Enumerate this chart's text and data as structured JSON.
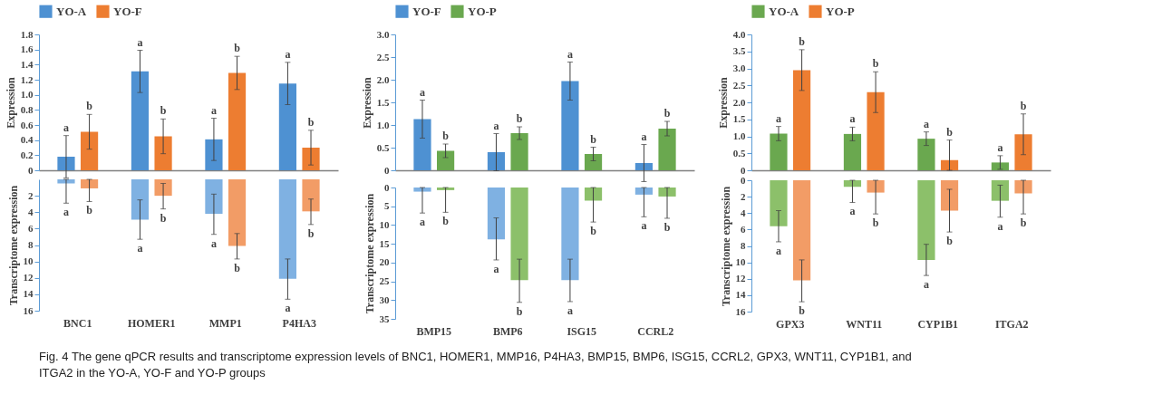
{
  "chart_data": [
    {
      "type": "bar",
      "categories": [
        null,
        null,
        null,
        null
      ],
      "ylabel": "Expression",
      "ylim": [
        0,
        1.8
      ],
      "yticks": [
        0,
        0.2,
        0.4,
        0.6,
        0.8,
        {
          "value": 1.0,
          "label": "1.0"
        },
        1.2,
        1.4,
        1.6,
        1.8
      ],
      "legend": "top",
      "tick_labels": "y",
      "grid": false,
      "series": [
        {
          "name": "YO-A",
          "color": "#4e91d2",
          "values": [
            0.18,
            1.31,
            0.41,
            1.15
          ],
          "errors": [
            0.28,
            0.28,
            0.28,
            0.28
          ],
          "value_labels": [
            "a",
            "a",
            "a",
            "a"
          ]
        },
        {
          "name": "YO-F",
          "color": "#ed7d31",
          "values": [
            0.51,
            0.45,
            1.29,
            0.3
          ],
          "errors": [
            0.23,
            0.23,
            0.22,
            0.23
          ],
          "value_labels": [
            "b",
            "b",
            "b",
            "b"
          ]
        }
      ],
      "annotations": [
        "Fig. 4  The gene qPCR results and transcriptome expression levels of BNC1, HOMER1, MMP16, P4HA3, BMP15, BMP6, ISG15, CCRL2, GPX3, WNT11, CYP1B1, and ITGA2 in the YO-A, YO-F and YO-P groups"
      ]
    },
    {
      "type": "bar",
      "categories": [
        "BNC1",
        "HOMER1",
        "MMP1",
        "P4HA3"
      ],
      "ylabel": "Transcriptome expression",
      "ylim": [
        16,
        0
      ],
      "yticks": [
        2,
        4,
        6,
        8,
        10,
        12,
        14,
        16
      ],
      "grid": false,
      "series": [
        {
          "color": "#7fb1e2",
          "values": [
            0.5,
            4.9,
            4.2,
            12.1
          ],
          "errors": [
            [
              0,
              2.9
            ],
            [
              2.5,
              7.3
            ],
            [
              1.8,
              6.7
            ],
            [
              9.7,
              14.6
            ]
          ],
          "value_labels": [
            "a",
            "a",
            "a",
            "a"
          ]
        },
        {
          "color": "#f29c66",
          "values": [
            1.1,
            2.0,
            8.1,
            3.9
          ],
          "errors": [
            [
              0,
              2.7
            ],
            [
              0.5,
              3.6
            ],
            [
              6.6,
              9.7
            ],
            [
              2.4,
              5.5
            ]
          ],
          "value_labels": [
            "b",
            "b",
            "b",
            "b"
          ]
        }
      ]
    },
    {
      "type": "bar",
      "categories": [
        null,
        null,
        null,
        null
      ],
      "ylabel": "Expression",
      "ylim": [
        0,
        3.0
      ],
      "yticks": [
        0,
        0.5,
        {
          "value": 1.0,
          "label": "1.0"
        },
        1.5,
        {
          "value": 2.0,
          "label": "2.0"
        },
        2.5,
        {
          "value": 3.0,
          "label": "3.0"
        }
      ],
      "legend": "top",
      "tick_labels": "y",
      "grid": false,
      "series": [
        {
          "name": "YO-F",
          "color": "#4e91d2",
          "values": [
            1.13,
            0.4,
            1.97,
            0.16
          ],
          "errors": [
            0.42,
            0.41,
            0.42,
            0.41
          ],
          "value_labels": [
            "a",
            "a",
            "a",
            "a"
          ]
        },
        {
          "name": "YO-P",
          "color": "#6aa84f",
          "values": [
            0.43,
            0.82,
            0.36,
            0.92
          ],
          "errors": [
            0.15,
            0.14,
            0.15,
            0.16
          ],
          "value_labels": [
            "b",
            "b",
            "b",
            "b"
          ]
        }
      ]
    },
    {
      "type": "bar",
      "categories": [
        "BMP15",
        "BMP6",
        "ISG15",
        "CCRL2"
      ],
      "ylabel": "Transcriptome expression",
      "ylim": [
        35,
        0
      ],
      "yticks": [
        0,
        5,
        10,
        15,
        20,
        25,
        30,
        35
      ],
      "grid": false,
      "series": [
        {
          "color": "#7fb1e2",
          "values": [
            1.1,
            13.8,
            24.7,
            1.9
          ],
          "errors": [
            [
              0,
              6.8
            ],
            [
              8.1,
              19.3
            ],
            [
              19.1,
              30.4
            ],
            [
              0,
              7.8
            ]
          ],
          "value_labels": [
            "a",
            "a",
            "a",
            "a"
          ]
        },
        {
          "color": "#8cc06a",
          "values": [
            0.7,
            24.7,
            3.5,
            2.4
          ],
          "errors": [
            [
              0,
              6.6
            ],
            [
              19.1,
              30.6
            ],
            [
              0,
              9.2
            ],
            [
              0,
              8.2
            ]
          ],
          "value_labels": [
            "b",
            "b",
            "b",
            "b"
          ]
        }
      ]
    },
    {
      "type": "bar",
      "categories": [
        null,
        null,
        null,
        null
      ],
      "ylabel": "Expression",
      "ylim": [
        0,
        4.0
      ],
      "yticks": [
        0,
        0.5,
        {
          "value": 1.0,
          "label": "1.0"
        },
        1.5,
        {
          "value": 2.0,
          "label": "2.0"
        },
        2.5,
        {
          "value": 3.0,
          "label": "3.0"
        },
        3.5,
        {
          "value": 4.0,
          "label": "4.0"
        }
      ],
      "legend": "top",
      "tick_labels": "y",
      "grid": false,
      "series": [
        {
          "name": "YO-A",
          "color": "#6aa84f",
          "values": [
            1.08,
            1.07,
            0.93,
            0.23
          ],
          "errors": [
            0.21,
            0.2,
            0.2,
            0.2
          ],
          "value_labels": [
            "a",
            "a",
            "a",
            "a"
          ]
        },
        {
          "name": "YO-P",
          "color": "#ed7d31",
          "values": [
            2.95,
            2.3,
            0.3,
            1.06
          ],
          "errors": [
            0.6,
            0.6,
            [
              0,
              0.89
            ],
            0.6
          ],
          "value_labels": [
            "b",
            "b",
            "b",
            "b"
          ]
        }
      ]
    },
    {
      "type": "bar",
      "categories": [
        "GPX3",
        "WNT11",
        "CYP1B1",
        "ITGA2"
      ],
      "ylabel": "Transcriptome expression",
      "ylim": [
        16,
        0
      ],
      "yticks": [
        0,
        2,
        4,
        6,
        8,
        10,
        12,
        14,
        16
      ],
      "grid": false,
      "series": [
        {
          "color": "#8cc06a",
          "values": [
            5.6,
            0.8,
            9.7,
            2.5
          ],
          "errors": [
            [
              3.7,
              7.5
            ],
            [
              0,
              2.7
            ],
            [
              7.8,
              11.6
            ],
            [
              0.6,
              4.5
            ]
          ],
          "value_labels": [
            "a",
            "a",
            "a",
            "a"
          ]
        },
        {
          "color": "#f29c66",
          "values": [
            12.2,
            1.5,
            3.7,
            1.6
          ],
          "errors": [
            [
              9.7,
              14.8
            ],
            [
              0,
              4.1
            ],
            [
              1.1,
              6.3
            ],
            [
              0,
              4.1
            ]
          ],
          "value_labels": [
            "b",
            "b",
            "b",
            "b"
          ]
        }
      ]
    }
  ]
}
